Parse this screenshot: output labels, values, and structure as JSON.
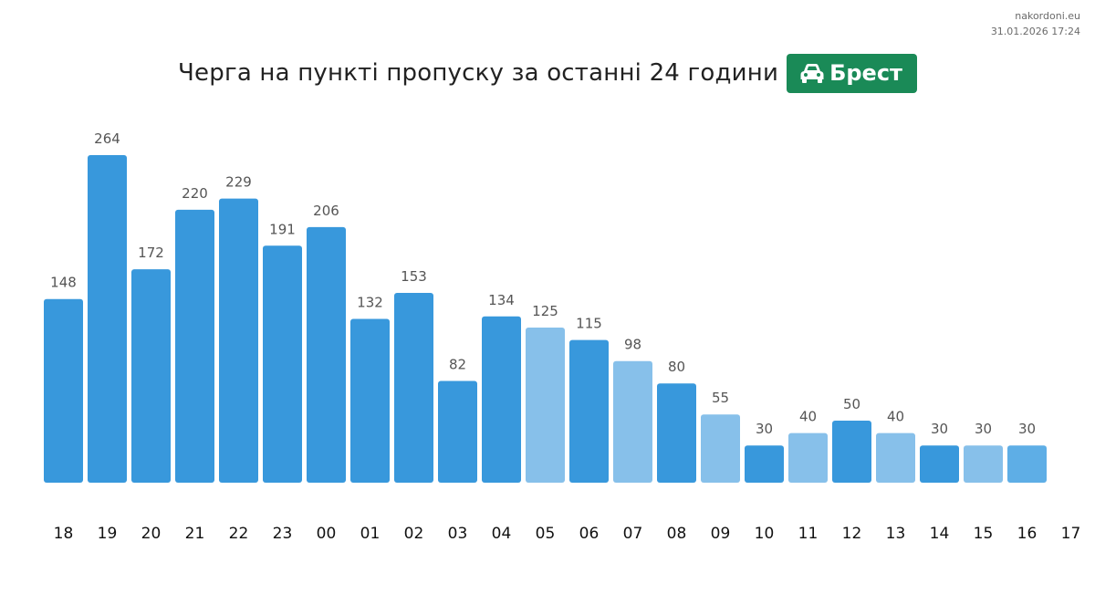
{
  "meta": {
    "site": "nakordoni.eu",
    "timestamp": "31.01.2026 17:24"
  },
  "header": {
    "title": "Черга на пункті пропуску за останні 24 години",
    "badge_label": "Брест",
    "badge_icon": "car-icon",
    "badge_color": "#1a8a57"
  },
  "chart_data": {
    "type": "bar",
    "title": "Черга на пункті пропуску за останні 24 години",
    "xlabel": "",
    "ylabel": "",
    "categories": [
      "18",
      "19",
      "20",
      "21",
      "22",
      "23",
      "00",
      "01",
      "02",
      "03",
      "04",
      "05",
      "06",
      "07",
      "08",
      "09",
      "10",
      "11",
      "12",
      "13",
      "14",
      "15",
      "16"
    ],
    "x_tick_labels": [
      "18",
      "19",
      "20",
      "21",
      "22",
      "23",
      "00",
      "01",
      "02",
      "03",
      "04",
      "05",
      "06",
      "07",
      "08",
      "09",
      "10",
      "11",
      "12",
      "13",
      "14",
      "15",
      "16",
      "17"
    ],
    "values": [
      148,
      264,
      172,
      220,
      229,
      191,
      206,
      132,
      153,
      82,
      134,
      125,
      115,
      98,
      80,
      55,
      30,
      40,
      50,
      40,
      30,
      30,
      30
    ],
    "bar_shades": [
      "dark",
      "dark",
      "dark",
      "dark",
      "dark",
      "dark",
      "dark",
      "dark",
      "dark",
      "dark",
      "dark",
      "light",
      "dark",
      "light",
      "dark",
      "light",
      "dark",
      "light",
      "dark",
      "light",
      "dark",
      "light",
      "medium"
    ],
    "colors": {
      "dark": "#3898dc",
      "light": "#87c0ea",
      "medium": "#5eaee6"
    },
    "ylim": [
      0,
      264
    ],
    "grid": false,
    "legend": "none",
    "data_labels": true
  }
}
